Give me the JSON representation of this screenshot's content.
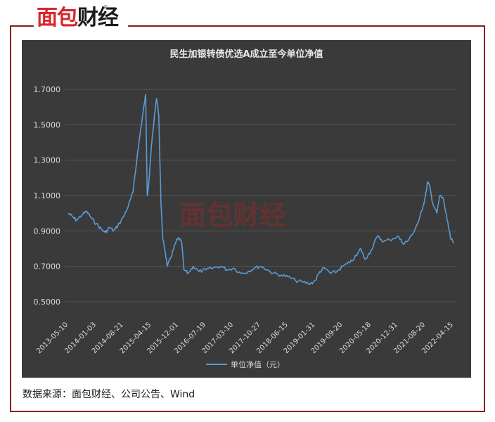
{
  "brand": {
    "logo_red": "面包",
    "logo_dark": "财经",
    "reg_mark": "®",
    "watermark": "面包财经"
  },
  "source_text": "数据来源：面包财经、公司公告、Wind",
  "colors": {
    "frame": "#8c1b1b",
    "panel": "#3a3a3a",
    "line": "#5b9bd5",
    "grid": "#555555",
    "text": "#d9d9d9"
  },
  "chart_data": {
    "type": "line",
    "title": "民生加银转债优选A成立至今单位净值",
    "xlabel": "",
    "ylabel": "",
    "ylim": [
      0.4,
      1.8
    ],
    "y_ticks": [
      0.5,
      0.7,
      0.9,
      1.1,
      1.3,
      1.5,
      1.7
    ],
    "y_tick_labels": [
      "0.5000",
      "0.7000",
      "0.9000",
      "1.1000",
      "1.3000",
      "1.5000",
      "1.7000"
    ],
    "x_tick_labels": [
      "2013-05-10",
      "2014-01-03",
      "2014-08-21",
      "2015-04-15",
      "2015-12-01",
      "2016-07-19",
      "2017-03-10",
      "2017-10-27",
      "2018-06-15",
      "2019-01-31",
      "2019-09-20",
      "2020-05-18",
      "2020-12-31",
      "2021-08-20",
      "2022-04-15"
    ],
    "legend": "bottom",
    "series": [
      {
        "name": "单位净值（元）",
        "points": [
          [
            "2013-05-10",
            1.0
          ],
          [
            "2013-06-15",
            0.98
          ],
          [
            "2013-07-20",
            0.96
          ],
          [
            "2013-09-01",
            0.99
          ],
          [
            "2013-10-15",
            1.01
          ],
          [
            "2013-11-25",
            0.97
          ],
          [
            "2014-01-03",
            0.94
          ],
          [
            "2014-02-15",
            0.91
          ],
          [
            "2014-03-20",
            0.89
          ],
          [
            "2014-04-25",
            0.92
          ],
          [
            "2014-05-30",
            0.9
          ],
          [
            "2014-07-05",
            0.93
          ],
          [
            "2014-08-21",
            0.98
          ],
          [
            "2014-10-01",
            1.04
          ],
          [
            "2014-11-10",
            1.12
          ],
          [
            "2014-12-20",
            1.35
          ],
          [
            "2015-01-15",
            1.48
          ],
          [
            "2015-02-05",
            1.58
          ],
          [
            "2015-02-25",
            1.67
          ],
          [
            "2015-03-10",
            1.1
          ],
          [
            "2015-03-25",
            1.18
          ],
          [
            "2015-04-15",
            1.38
          ],
          [
            "2015-05-10",
            1.55
          ],
          [
            "2015-05-28",
            1.65
          ],
          [
            "2015-06-15",
            1.56
          ],
          [
            "2015-07-05",
            1.05
          ],
          [
            "2015-07-20",
            0.85
          ],
          [
            "2015-08-10",
            0.78
          ],
          [
            "2015-08-28",
            0.7
          ],
          [
            "2015-09-20",
            0.74
          ],
          [
            "2015-10-15",
            0.79
          ],
          [
            "2015-11-10",
            0.84
          ],
          [
            "2015-12-01",
            0.86
          ],
          [
            "2015-12-28",
            0.83
          ],
          [
            "2016-01-15",
            0.68
          ],
          [
            "2016-02-20",
            0.66
          ],
          [
            "2016-04-01",
            0.7
          ],
          [
            "2016-05-20",
            0.67
          ],
          [
            "2016-07-19",
            0.68
          ],
          [
            "2016-09-15",
            0.69
          ],
          [
            "2016-11-20",
            0.7
          ],
          [
            "2017-01-15",
            0.68
          ],
          [
            "2017-03-10",
            0.69
          ],
          [
            "2017-05-10",
            0.66
          ],
          [
            "2017-07-10",
            0.67
          ],
          [
            "2017-09-01",
            0.69
          ],
          [
            "2017-10-27",
            0.7
          ],
          [
            "2017-12-20",
            0.68
          ],
          [
            "2018-02-10",
            0.66
          ],
          [
            "2018-04-15",
            0.65
          ],
          [
            "2018-06-15",
            0.64
          ],
          [
            "2018-08-15",
            0.62
          ],
          [
            "2018-10-20",
            0.61
          ],
          [
            "2018-12-20",
            0.6
          ],
          [
            "2019-01-31",
            0.62
          ],
          [
            "2019-03-10",
            0.67
          ],
          [
            "2019-04-20",
            0.69
          ],
          [
            "2019-06-10",
            0.66
          ],
          [
            "2019-08-01",
            0.67
          ],
          [
            "2019-09-20",
            0.7
          ],
          [
            "2019-11-20",
            0.72
          ],
          [
            "2020-01-15",
            0.76
          ],
          [
            "2020-02-20",
            0.8
          ],
          [
            "2020-03-25",
            0.74
          ],
          [
            "2020-05-18",
            0.79
          ],
          [
            "2020-07-10",
            0.87
          ],
          [
            "2020-09-01",
            0.84
          ],
          [
            "2020-10-20",
            0.85
          ],
          [
            "2020-12-31",
            0.87
          ],
          [
            "2021-02-10",
            0.83
          ],
          [
            "2021-03-20",
            0.84
          ],
          [
            "2021-05-01",
            0.88
          ],
          [
            "2021-06-20",
            0.95
          ],
          [
            "2021-07-25",
            1.02
          ],
          [
            "2021-08-20",
            1.1
          ],
          [
            "2021-09-10",
            1.18
          ],
          [
            "2021-09-25",
            1.15
          ],
          [
            "2021-10-20",
            1.06
          ],
          [
            "2021-11-25",
            1.0
          ],
          [
            "2021-12-20",
            1.1
          ],
          [
            "2022-01-20",
            1.08
          ],
          [
            "2022-02-20",
            0.96
          ],
          [
            "2022-03-20",
            0.86
          ],
          [
            "2022-04-15",
            0.83
          ]
        ]
      }
    ]
  }
}
